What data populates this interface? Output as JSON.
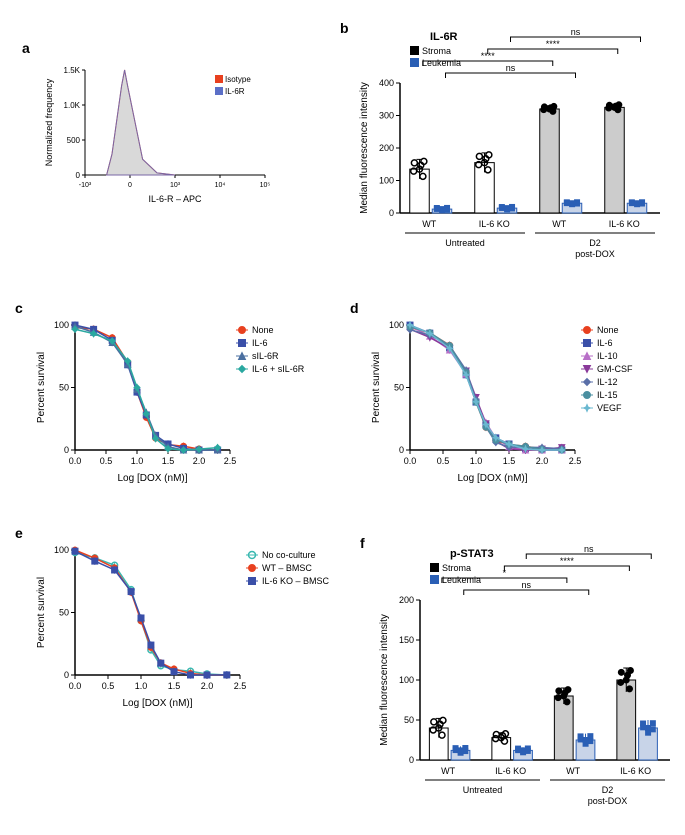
{
  "panels": {
    "a": {
      "label": "a",
      "xlabel": "IL-6-R – APC",
      "ylabel": "Normalized frequency",
      "legend": [
        {
          "label": "Isotype",
          "color": "#e8401f"
        },
        {
          "label": "IL-6R",
          "color": "#5b6fc7"
        }
      ],
      "yticks": [
        "0",
        "500",
        "1.0K",
        "1.5K"
      ],
      "xticks": [
        "-10³",
        "0",
        "10³",
        "10⁴",
        "10⁵"
      ],
      "peak_fill": "#d9d9d9"
    },
    "b": {
      "label": "b",
      "title": "IL-6R",
      "ylabel": "Median fluorescence intensity",
      "legend": [
        {
          "label": "Stroma",
          "color": "#000000"
        },
        {
          "label": "Leukemia",
          "color": "#2a5fb5"
        }
      ],
      "yticks": [
        0,
        100,
        200,
        300,
        400
      ],
      "ylim": [
        0,
        400
      ],
      "groups": [
        "WT",
        "IL-6 KO",
        "WT",
        "IL-6 KO"
      ],
      "supergroups": [
        "Untreated",
        "D2 post-DOX"
      ],
      "sig_labels": [
        "****",
        "ns",
        "****",
        "ns"
      ],
      "bars": [
        {
          "stroma": 135,
          "leukemia": 12,
          "stroma_err": 30,
          "leukemia_err": 6
        },
        {
          "stroma": 155,
          "leukemia": 15,
          "stroma_err": 30,
          "leukemia_err": 6
        },
        {
          "stroma": 320,
          "leukemia": 30,
          "stroma_err": 10,
          "leukemia_err": 5
        },
        {
          "stroma": 325,
          "leukemia": 30,
          "stroma_err": 10,
          "leukemia_err": 5
        }
      ],
      "stroma_fill_untreated": "#ffffff",
      "stroma_fill_treated": "#4a4a4a",
      "leukemia_fill": "#c8d4e8"
    },
    "c": {
      "label": "c",
      "xlabel": "Log [DOX (nM)]",
      "ylabel": "Percent survival",
      "xticks": [
        0.0,
        0.5,
        1.0,
        1.5,
        2.0,
        2.5
      ],
      "yticks": [
        0,
        50,
        100
      ],
      "series": [
        {
          "label": "None",
          "color": "#e8401f",
          "marker": "circle"
        },
        {
          "label": "IL-6",
          "color": "#3a4fa8",
          "marker": "square"
        },
        {
          "label": "sIL-6R",
          "color": "#4a6fa0",
          "marker": "triangle"
        },
        {
          "label": "IL-6 + sIL-6R",
          "color": "#2aa8a0",
          "marker": "diamond"
        }
      ],
      "data": {
        "x": [
          0.0,
          0.3,
          0.6,
          0.85,
          1.0,
          1.15,
          1.3,
          1.5,
          1.75,
          2.0,
          2.3
        ],
        "y": [
          98,
          95,
          88,
          70,
          48,
          28,
          10,
          3,
          1,
          0,
          0
        ]
      }
    },
    "d": {
      "label": "d",
      "xlabel": "Log [DOX (nM)]",
      "ylabel": "Percent survival",
      "xticks": [
        0.0,
        0.5,
        1.0,
        1.5,
        2.0,
        2.5
      ],
      "yticks": [
        0,
        50,
        100
      ],
      "series": [
        {
          "label": "None",
          "color": "#e8401f",
          "marker": "circle"
        },
        {
          "label": "IL-6",
          "color": "#3a4fa8",
          "marker": "square"
        },
        {
          "label": "IL-10",
          "color": "#b76fc7",
          "marker": "triangle"
        },
        {
          "label": "GM-CSF",
          "color": "#8a3a9a",
          "marker": "triangledown"
        },
        {
          "label": "IL-12",
          "color": "#5a6fa8",
          "marker": "diamond"
        },
        {
          "label": "IL-15",
          "color": "#4a8fa0",
          "marker": "circle"
        },
        {
          "label": "VEGF",
          "color": "#6ab8d0",
          "marker": "star"
        }
      ],
      "data": {
        "x": [
          0.0,
          0.3,
          0.6,
          0.85,
          1.0,
          1.15,
          1.3,
          1.5,
          1.75,
          2.0,
          2.3
        ],
        "y": [
          98,
          92,
          82,
          62,
          40,
          20,
          8,
          3,
          1,
          0,
          0
        ]
      }
    },
    "e": {
      "label": "e",
      "xlabel": "Log [DOX (nM)]",
      "ylabel": "Percent survival",
      "xticks": [
        0.0,
        0.5,
        1.0,
        1.5,
        2.0,
        2.5
      ],
      "yticks": [
        0,
        50,
        100
      ],
      "series": [
        {
          "label": "No co-culture",
          "color": "#3ab8b0",
          "marker": "circle-open"
        },
        {
          "label": "WT – BMSC",
          "color": "#e8401f",
          "marker": "circle"
        },
        {
          "label": "IL-6 KO – BMSC",
          "color": "#3a4fa8",
          "marker": "square"
        }
      ],
      "data": {
        "x": [
          0.0,
          0.3,
          0.6,
          0.85,
          1.0,
          1.15,
          1.3,
          1.5,
          1.75,
          2.0,
          2.3
        ],
        "y": [
          98,
          92,
          86,
          68,
          45,
          22,
          8,
          3,
          1,
          0,
          0
        ]
      }
    },
    "f": {
      "label": "f",
      "title": "p-STAT3",
      "ylabel": "Median fluorescence intensity",
      "legend": [
        {
          "label": "Stroma",
          "color": "#000000"
        },
        {
          "label": "Leukemia",
          "color": "#2a5fb5"
        }
      ],
      "yticks": [
        0,
        50,
        100,
        150,
        200
      ],
      "ylim": [
        0,
        200
      ],
      "groups": [
        "WT",
        "IL-6 KO",
        "WT",
        "IL-6 KO"
      ],
      "supergroups": [
        "Untreated",
        "D2 post-DOX"
      ],
      "sig_labels": [
        "*",
        "ns",
        "****",
        "ns"
      ],
      "bars": [
        {
          "stroma": 40,
          "leukemia": 12,
          "stroma_err": 12,
          "leukemia_err": 5
        },
        {
          "stroma": 28,
          "leukemia": 12,
          "stroma_err": 6,
          "leukemia_err": 4
        },
        {
          "stroma": 80,
          "leukemia": 25,
          "stroma_err": 10,
          "leukemia_err": 8
        },
        {
          "stroma": 100,
          "leukemia": 40,
          "stroma_err": 15,
          "leukemia_err": 10
        }
      ]
    }
  }
}
